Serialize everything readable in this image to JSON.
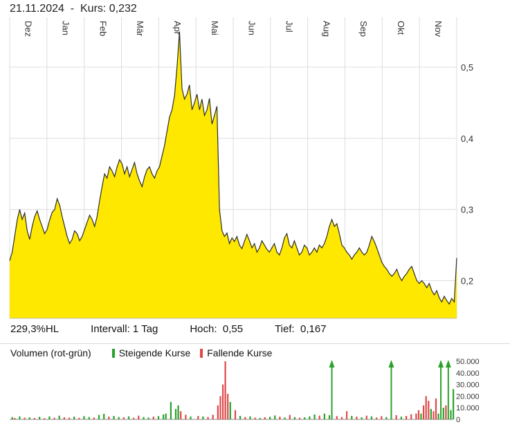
{
  "header": {
    "title": "21.11.2024  -  Kurs: 0,232"
  },
  "stats": {
    "range": "229,3%HL",
    "interval": "Intervall: 1 Tag",
    "high": "Hoch:  0,55",
    "low": "Tief:  0,167"
  },
  "volume_legend": {
    "title": "Volumen (rot-grün)",
    "up": "Steigende Kurse",
    "down": "Fallende Kurse"
  },
  "chart_data": [
    {
      "type": "area",
      "title": "Kurs (Tageschart, Dez–Nov)",
      "categories": [
        "Dez",
        "Jan",
        "Feb",
        "Mär",
        "Apr",
        "Mai",
        "Jun",
        "Jul",
        "Aug",
        "Sep",
        "Okt",
        "Nov"
      ],
      "values": [
        0.228,
        0.24,
        0.262,
        0.285,
        0.3,
        0.286,
        0.295,
        0.27,
        0.258,
        0.276,
        0.29,
        0.298,
        0.286,
        0.276,
        0.266,
        0.272,
        0.285,
        0.296,
        0.3,
        0.315,
        0.306,
        0.29,
        0.276,
        0.262,
        0.252,
        0.258,
        0.27,
        0.266,
        0.256,
        0.262,
        0.272,
        0.282,
        0.292,
        0.286,
        0.276,
        0.29,
        0.312,
        0.332,
        0.35,
        0.344,
        0.36,
        0.354,
        0.346,
        0.36,
        0.37,
        0.364,
        0.35,
        0.36,
        0.346,
        0.356,
        0.366,
        0.35,
        0.34,
        0.332,
        0.346,
        0.356,
        0.36,
        0.35,
        0.344,
        0.354,
        0.36,
        0.375,
        0.39,
        0.41,
        0.43,
        0.44,
        0.46,
        0.5,
        0.55,
        0.47,
        0.455,
        0.462,
        0.475,
        0.44,
        0.45,
        0.462,
        0.44,
        0.455,
        0.432,
        0.44,
        0.456,
        0.42,
        0.432,
        0.445,
        0.3,
        0.27,
        0.262,
        0.267,
        0.252,
        0.26,
        0.255,
        0.262,
        0.25,
        0.245,
        0.255,
        0.265,
        0.256,
        0.246,
        0.252,
        0.24,
        0.246,
        0.256,
        0.25,
        0.244,
        0.24,
        0.246,
        0.252,
        0.24,
        0.236,
        0.246,
        0.26,
        0.266,
        0.25,
        0.246,
        0.256,
        0.246,
        0.236,
        0.24,
        0.25,
        0.246,
        0.236,
        0.24,
        0.246,
        0.24,
        0.25,
        0.246,
        0.252,
        0.262,
        0.276,
        0.286,
        0.276,
        0.28,
        0.266,
        0.25,
        0.246,
        0.24,
        0.236,
        0.23,
        0.236,
        0.24,
        0.246,
        0.24,
        0.236,
        0.24,
        0.25,
        0.262,
        0.255,
        0.246,
        0.236,
        0.226,
        0.22,
        0.216,
        0.21,
        0.206,
        0.21,
        0.216,
        0.206,
        0.2,
        0.206,
        0.21,
        0.216,
        0.22,
        0.21,
        0.2,
        0.196,
        0.2,
        0.196,
        0.19,
        0.196,
        0.186,
        0.18,
        0.186,
        0.176,
        0.17,
        0.178,
        0.172,
        0.167,
        0.175,
        0.17,
        0.232
      ],
      "ylim": [
        0.147,
        0.57
      ],
      "yticks": [
        {
          "value": 0.5,
          "label": "0,5"
        },
        {
          "value": 0.4,
          "label": "0,4"
        },
        {
          "value": 0.3,
          "label": "0,3"
        },
        {
          "value": 0.2,
          "label": "0,2"
        }
      ],
      "grid": true,
      "legend_position": "none",
      "fill_color": "#ffe800",
      "line_color": "#2b2b2b",
      "grid_color": "#dcdcdc",
      "axis_color": "#bbbbbb"
    },
    {
      "type": "bar",
      "title": "Volumen (rot-grün)",
      "n": 180,
      "ylim": [
        0,
        50000
      ],
      "yticks": [
        {
          "value": 50000,
          "label": "50.000"
        },
        {
          "value": 40000,
          "label": "40.000"
        },
        {
          "value": 30000,
          "label": "30.000"
        },
        {
          "value": 20000,
          "label": "20.000"
        },
        {
          "value": 10000,
          "label": "10.000"
        },
        {
          "value": 0,
          "label": "0"
        }
      ],
      "note": "values above 50000 are drawn as up-arrows; g = rising (green), r = falling (red)",
      "up_color": "#2ba12b",
      "down_color": "#e04848",
      "axis_color": "#888888",
      "bars": [
        [
          1,
          2000,
          "g"
        ],
        [
          2,
          1200,
          "r"
        ],
        [
          4,
          2600,
          "g"
        ],
        [
          6,
          1500,
          "r"
        ],
        [
          8,
          1800,
          "g"
        ],
        [
          10,
          1200,
          "r"
        ],
        [
          12,
          2200,
          "g"
        ],
        [
          14,
          1000,
          "r"
        ],
        [
          16,
          2600,
          "g"
        ],
        [
          18,
          1400,
          "r"
        ],
        [
          20,
          3200,
          "g"
        ],
        [
          22,
          1800,
          "r"
        ],
        [
          24,
          1500,
          "r"
        ],
        [
          26,
          2400,
          "g"
        ],
        [
          28,
          1300,
          "r"
        ],
        [
          30,
          2800,
          "g"
        ],
        [
          32,
          2000,
          "g"
        ],
        [
          34,
          1600,
          "r"
        ],
        [
          36,
          3800,
          "g"
        ],
        [
          38,
          4800,
          "g"
        ],
        [
          40,
          2400,
          "r"
        ],
        [
          42,
          3000,
          "g"
        ],
        [
          44,
          2000,
          "g"
        ],
        [
          46,
          1800,
          "r"
        ],
        [
          48,
          2600,
          "g"
        ],
        [
          50,
          1400,
          "r"
        ],
        [
          52,
          3200,
          "r"
        ],
        [
          54,
          2000,
          "g"
        ],
        [
          56,
          1600,
          "g"
        ],
        [
          58,
          2400,
          "r"
        ],
        [
          60,
          2800,
          "g"
        ],
        [
          62,
          4200,
          "g"
        ],
        [
          63,
          5000,
          "g"
        ],
        [
          65,
          15000,
          "g"
        ],
        [
          67,
          9000,
          "g"
        ],
        [
          68,
          12000,
          "g"
        ],
        [
          69,
          7000,
          "r"
        ],
        [
          71,
          4000,
          "r"
        ],
        [
          73,
          2500,
          "g"
        ],
        [
          76,
          3000,
          "r"
        ],
        [
          78,
          2500,
          "g"
        ],
        [
          80,
          2000,
          "r"
        ],
        [
          82,
          4000,
          "r"
        ],
        [
          84,
          12000,
          "r"
        ],
        [
          85,
          20000,
          "r"
        ],
        [
          86,
          30000,
          "r"
        ],
        [
          87,
          50000,
          "r"
        ],
        [
          88,
          22000,
          "r"
        ],
        [
          89,
          15000,
          "g"
        ],
        [
          91,
          8000,
          "r"
        ],
        [
          93,
          3000,
          "g"
        ],
        [
          95,
          2000,
          "r"
        ],
        [
          97,
          2600,
          "g"
        ],
        [
          99,
          1500,
          "r"
        ],
        [
          101,
          1200,
          "g"
        ],
        [
          103,
          1800,
          "r"
        ],
        [
          105,
          2200,
          "g"
        ],
        [
          107,
          3400,
          "g"
        ],
        [
          109,
          2400,
          "r"
        ],
        [
          111,
          1600,
          "g"
        ],
        [
          113,
          3800,
          "r"
        ],
        [
          115,
          2000,
          "g"
        ],
        [
          117,
          1400,
          "r"
        ],
        [
          119,
          1800,
          "g"
        ],
        [
          121,
          2600,
          "g"
        ],
        [
          123,
          4200,
          "g"
        ],
        [
          125,
          3200,
          "r"
        ],
        [
          127,
          5000,
          "g"
        ],
        [
          129,
          3600,
          "g"
        ],
        [
          130,
          60000,
          "g"
        ],
        [
          132,
          2800,
          "r"
        ],
        [
          134,
          2000,
          "r"
        ],
        [
          136,
          7000,
          "r"
        ],
        [
          138,
          3000,
          "g"
        ],
        [
          140,
          2400,
          "r"
        ],
        [
          142,
          1800,
          "g"
        ],
        [
          144,
          3200,
          "r"
        ],
        [
          146,
          2600,
          "g"
        ],
        [
          148,
          1600,
          "r"
        ],
        [
          150,
          2800,
          "r"
        ],
        [
          152,
          2000,
          "g"
        ],
        [
          154,
          60000,
          "g"
        ],
        [
          156,
          3600,
          "r"
        ],
        [
          158,
          2400,
          "g"
        ],
        [
          160,
          3000,
          "r"
        ],
        [
          162,
          4400,
          "r"
        ],
        [
          164,
          5000,
          "r"
        ],
        [
          165,
          8000,
          "r"
        ],
        [
          166,
          5000,
          "g"
        ],
        [
          167,
          12000,
          "r"
        ],
        [
          168,
          20000,
          "r"
        ],
        [
          169,
          16000,
          "r"
        ],
        [
          170,
          9000,
          "g"
        ],
        [
          171,
          7000,
          "r"
        ],
        [
          172,
          18000,
          "r"
        ],
        [
          173,
          5000,
          "g"
        ],
        [
          174,
          60000,
          "g"
        ],
        [
          175,
          10000,
          "g"
        ],
        [
          176,
          12000,
          "r"
        ],
        [
          177,
          60000,
          "g"
        ],
        [
          178,
          8000,
          "g"
        ],
        [
          179,
          26000,
          "g"
        ]
      ]
    }
  ]
}
